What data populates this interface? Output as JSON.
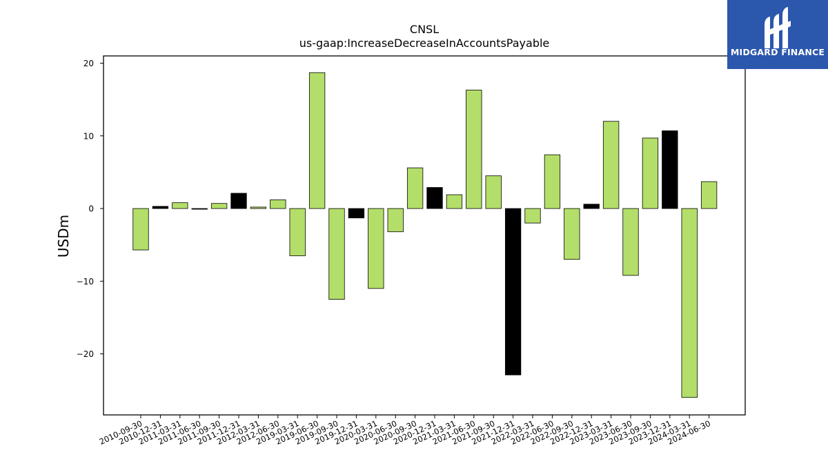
{
  "brand": {
    "name": "MIDGARD FINANCE",
    "background_color": "#2b57ad",
    "icon": "midgard-m-logo-icon"
  },
  "chart_data": {
    "type": "bar",
    "title": "CNSL",
    "subtitle": "us-gaap:IncreaseDecreaseInAccountsPayable",
    "xlabel": "",
    "ylabel": "USDm",
    "ylim": [
      -28.4,
      21.0
    ],
    "yticks": [
      -20,
      -10,
      0,
      10,
      20
    ],
    "yticklabels": [
      "−20",
      "−10",
      "0",
      "10",
      "20"
    ],
    "grid": false,
    "colors": {
      "quarterly": "#b3de69",
      "annual": "#000000",
      "edge": "#000000"
    },
    "categories": [
      "2010-09-30",
      "2010-12-31",
      "2011-03-31",
      "2011-06-30",
      "2011-09-30",
      "2011-12-31",
      "2012-03-31",
      "2012-06-30",
      "2019-03-31",
      "2019-06-30",
      "2019-09-30",
      "2019-12-31",
      "2020-03-31",
      "2020-06-30",
      "2020-09-30",
      "2020-12-31",
      "2021-03-31",
      "2021-06-30",
      "2021-09-30",
      "2021-12-31",
      "2022-03-31",
      "2022-06-30",
      "2022-09-30",
      "2022-12-31",
      "2023-03-31",
      "2023-06-30",
      "2023-09-30",
      "2023-12-31",
      "2024-03-31",
      "2024-06-30"
    ],
    "values": [
      -5.7,
      0.3,
      0.8,
      -0.1,
      0.7,
      2.1,
      0.2,
      1.2,
      -6.5,
      18.7,
      -12.5,
      -1.3,
      -11.0,
      -3.2,
      5.6,
      2.9,
      1.9,
      16.3,
      4.5,
      -22.9,
      -2.0,
      7.4,
      -7.0,
      0.6,
      12.0,
      -9.2,
      9.7,
      10.7,
      -26.0,
      3.7
    ],
    "bar_type": [
      "Q",
      "A",
      "Q",
      "A",
      "Q",
      "A",
      "Q",
      "Q",
      "Q",
      "Q",
      "Q",
      "A",
      "Q",
      "Q",
      "Q",
      "A",
      "Q",
      "Q",
      "Q",
      "A",
      "Q",
      "Q",
      "Q",
      "A",
      "Q",
      "Q",
      "Q",
      "A",
      "Q",
      "Q"
    ]
  }
}
